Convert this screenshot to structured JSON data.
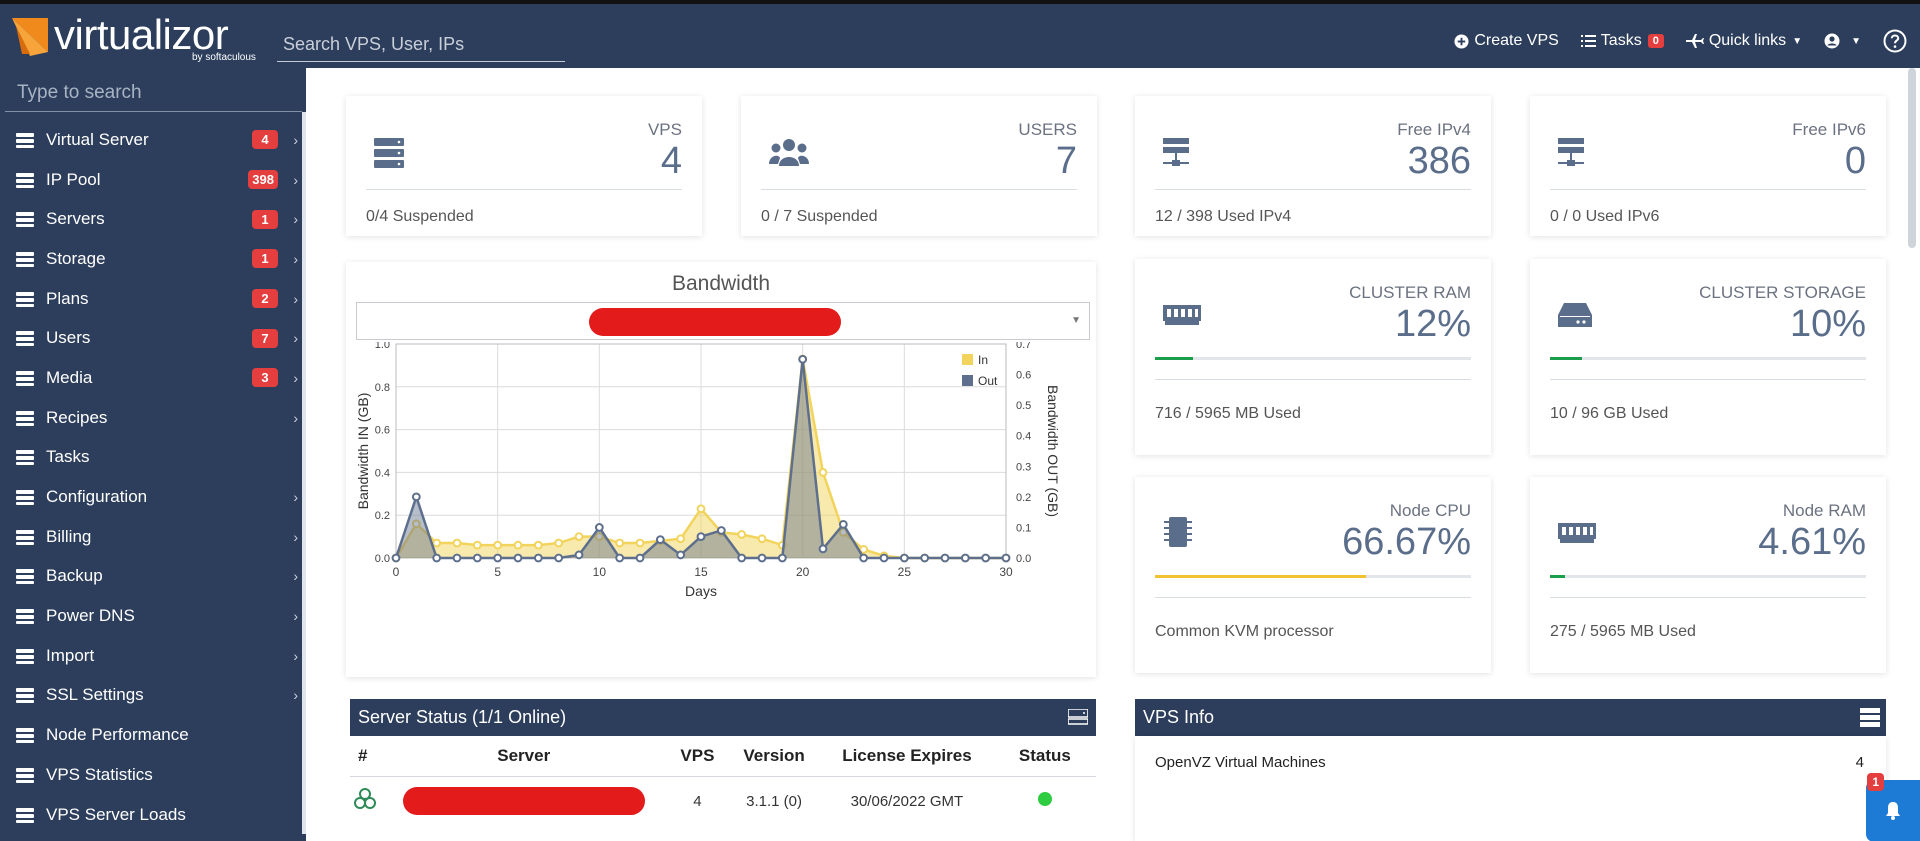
{
  "header": {
    "logo_text": "virtualizor",
    "logo_sub": "by softaculous",
    "search_placeholder": "Search VPS, User, IPs",
    "nav": {
      "create": "Create VPS",
      "tasks": "Tasks",
      "tasks_count": "0",
      "quick": "Quick links"
    }
  },
  "sidebar": {
    "search_placeholder": "Type to search",
    "items": [
      {
        "label": "Virtual Server",
        "count": "4"
      },
      {
        "label": "IP Pool",
        "count": "398"
      },
      {
        "label": "Servers",
        "count": "1"
      },
      {
        "label": "Storage",
        "count": "1"
      },
      {
        "label": "Plans",
        "count": "2"
      },
      {
        "label": "Users",
        "count": "7"
      },
      {
        "label": "Media",
        "count": "3"
      },
      {
        "label": "Recipes"
      },
      {
        "label": "Tasks"
      },
      {
        "label": "Configuration"
      },
      {
        "label": "Billing"
      },
      {
        "label": "Backup"
      },
      {
        "label": "Power DNS"
      },
      {
        "label": "Import"
      },
      {
        "label": "SSL Settings"
      },
      {
        "label": "Node Performance"
      },
      {
        "label": "VPS Statistics"
      },
      {
        "label": "VPS Server Loads"
      }
    ]
  },
  "stats": {
    "vps": {
      "label": "VPS",
      "value": "4",
      "sub": "0/4 Suspended"
    },
    "users": {
      "label": "USERS",
      "value": "7",
      "sub": "0 / 7 Suspended"
    },
    "ipv4": {
      "label": "Free IPv4",
      "value": "386",
      "sub": "12 / 398 Used IPv4"
    },
    "ipv6": {
      "label": "Free IPv6",
      "value": "0",
      "sub": "0 / 0 Used IPv6"
    },
    "cram": {
      "label": "CLUSTER RAM",
      "value": "12%",
      "sub": "716 / 5965 MB Used",
      "progress": 0.12
    },
    "cstorage": {
      "label": "CLUSTER STORAGE",
      "value": "10%",
      "sub": "10 / 96 GB Used",
      "progress": 0.1
    },
    "ncpu": {
      "label": "Node CPU",
      "value": "66.67%",
      "sub": "Common KVM processor",
      "progress": 0.6667
    },
    "nram": {
      "label": "Node RAM",
      "value": "4.61%",
      "sub": "275 / 5965 MB Used",
      "progress": 0.0461
    }
  },
  "colors": {
    "green": "#1a9e4b",
    "yellow": "#f1c232"
  },
  "chart_data": {
    "type": "line",
    "title": "Bandwidth",
    "xlabel": "Days",
    "ylabel": "Bandwidth IN (GB)",
    "y2label": "Bandwidth OUT (GB)",
    "xlim": [
      0,
      30
    ],
    "ylim": [
      0,
      1.0
    ],
    "y2lim": [
      0,
      0.7
    ],
    "xticks": [
      "0",
      "5",
      "10",
      "15",
      "20",
      "25",
      "30"
    ],
    "yticks": [
      "0.0",
      "0.2",
      "0.4",
      "0.6",
      "0.8",
      "1.0"
    ],
    "y2ticks": [
      "0.0",
      "0.1",
      "0.2",
      "0.3",
      "0.4",
      "0.5",
      "0.6",
      "0.7"
    ],
    "legend": "top-right",
    "x": [
      0,
      1,
      2,
      3,
      4,
      5,
      6,
      7,
      8,
      9,
      10,
      11,
      12,
      13,
      14,
      15,
      16,
      17,
      18,
      19,
      20,
      21,
      22,
      23,
      24,
      25,
      26,
      27,
      28,
      29,
      30
    ],
    "series": [
      {
        "name": "In",
        "axis": "left",
        "color": "#f2d45c",
        "values": [
          0,
          0.16,
          0.07,
          0.07,
          0.06,
          0.06,
          0.06,
          0.06,
          0.07,
          0.1,
          0.1,
          0.07,
          0.07,
          0.08,
          0.09,
          0.23,
          0.12,
          0.11,
          0.09,
          0.06,
          0.93,
          0.4,
          0.12,
          0.04,
          0.01,
          0,
          0,
          0,
          0,
          0,
          0
        ]
      },
      {
        "name": "Out",
        "axis": "right",
        "color": "#5d6f8c",
        "values": [
          0,
          0.2,
          0,
          0,
          0,
          0,
          0,
          0,
          0,
          0.01,
          0.1,
          0,
          0,
          0.06,
          0.01,
          0.07,
          0.09,
          0,
          0,
          0,
          0.65,
          0.03,
          0.11,
          0,
          0,
          0,
          0,
          0,
          0,
          0,
          0
        ]
      }
    ]
  },
  "server_status": {
    "title": "Server Status (1/1 Online)",
    "columns": [
      "#",
      "Server",
      "VPS",
      "Version",
      "License Expires",
      "Status"
    ],
    "rows": [
      {
        "vps": "4",
        "version": "3.1.1 (0)",
        "expires": "30/06/2022 GMT"
      }
    ]
  },
  "vps_info": {
    "title": "VPS Info",
    "rows": [
      {
        "label": "OpenVZ Virtual Machines",
        "value": "4"
      }
    ]
  },
  "notifications": {
    "count": "1"
  }
}
